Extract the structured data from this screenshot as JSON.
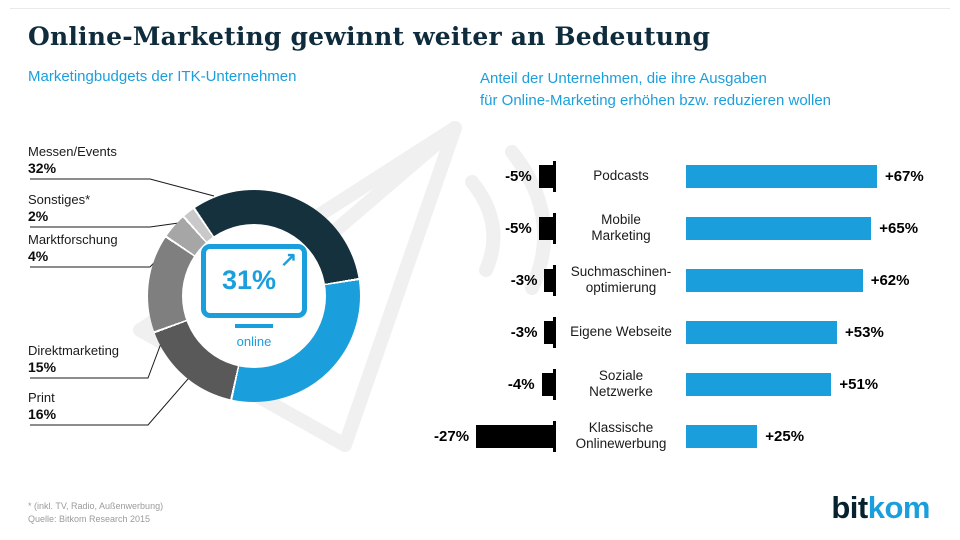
{
  "page": {
    "title": "Online-Marketing gewinnt weiter an Bedeutung",
    "footnote": "* (inkl. TV, Radio, Außenwerbung)",
    "source": "Quelle: Bitkom Research 2015",
    "accent_color": "#1b9fdc",
    "logo": {
      "part1": "bit",
      "part2": "kom"
    }
  },
  "chart_data": [
    {
      "type": "pie",
      "subtype": "donut",
      "title": "Marketingbudgets der ITK-Unternehmen",
      "unit": "%",
      "rotation_deg": -35,
      "center": {
        "value_label": "31%",
        "sublabel": "online"
      },
      "segments": [
        {
          "label": "Messen/Events",
          "value": 32,
          "color": "#15313d"
        },
        {
          "label": "online",
          "value": 31,
          "color": "#1b9fdc"
        },
        {
          "label": "Print",
          "value": 16,
          "color": "#595959"
        },
        {
          "label": "Direktmarketing",
          "value": 15,
          "color": "#7f7f7f"
        },
        {
          "label": "Marktforschung",
          "value": 4,
          "color": "#a6a6a6"
        },
        {
          "label": "Sonstiges*",
          "value": 2,
          "color": "#c9c9c9"
        }
      ],
      "legend": [
        {
          "label": "Messen/Events",
          "value": "32%"
        },
        {
          "label": "Sonstiges*",
          "value": "2%"
        },
        {
          "label": "Marktforschung",
          "value": "4%"
        },
        {
          "label": "Direktmarketing",
          "value": "15%"
        },
        {
          "label": "Print",
          "value": "16%"
        }
      ]
    },
    {
      "type": "bar",
      "orientation": "horizontal-diverging",
      "title_lines": [
        "Anteil der Unternehmen, die ihre Ausgaben",
        "für Online-Marketing erhöhen bzw. reduzieren wollen"
      ],
      "unit": "%",
      "categories": [
        "Podcasts",
        "Mobile Marketing",
        "Suchmaschinenoptimierung",
        "Eigene Webseite",
        "Soziale Netzwerke",
        "Klassische Onlinewerbung"
      ],
      "category_display_lines": [
        [
          "Podcasts"
        ],
        [
          "Mobile",
          "Marketing"
        ],
        [
          "Suchmaschinen-",
          "optimierung"
        ],
        [
          "Eigene Webseite"
        ],
        [
          "Soziale",
          "Netzwerke"
        ],
        [
          "Klassische",
          "Onlinewerbung"
        ]
      ],
      "series": [
        {
          "name": "reduzieren",
          "color": "#000000",
          "values": [
            -5,
            -5,
            -3,
            -3,
            -4,
            -27
          ],
          "labels": [
            "-5%",
            "-5%",
            "-3%",
            "-3%",
            "-4%",
            "-27%"
          ]
        },
        {
          "name": "erhöhen",
          "color": "#1b9fdc",
          "values": [
            67,
            65,
            62,
            53,
            51,
            25
          ],
          "labels": [
            "+67%",
            "+65%",
            "+62%",
            "+53%",
            "+51%",
            "+25%"
          ]
        }
      ]
    }
  ]
}
